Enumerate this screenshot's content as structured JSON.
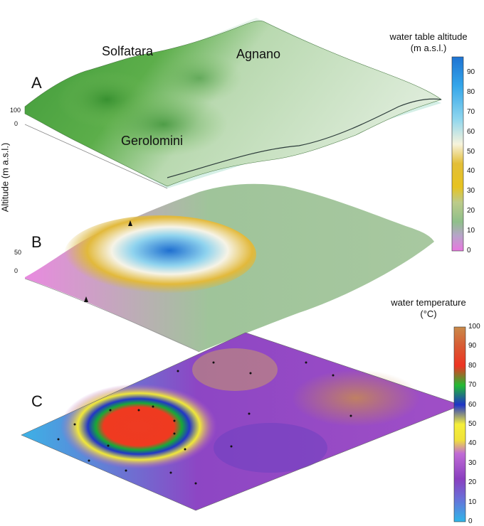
{
  "panels": {
    "a": {
      "letter": "A",
      "places": [
        "Solfatara",
        "Agnano",
        "Gerolomini"
      ],
      "z_ticks": [
        "100",
        "0"
      ]
    },
    "b": {
      "letter": "B",
      "z_ticks": [
        "50",
        "0"
      ]
    },
    "c": {
      "letter": "C"
    }
  },
  "y_axis_label": "Altitude (m a.s.l.)",
  "colorbar_altitude": {
    "title_line1": "water table altitude",
    "title_line2": "(m a.s.l.)",
    "ticks": [
      "90",
      "80",
      "70",
      "60",
      "50",
      "40",
      "30",
      "20",
      "10",
      "0"
    ],
    "colors": [
      "#1e73d2",
      "#34a6ea",
      "#8fd6ee",
      "#f7f3dc",
      "#e3be38",
      "#e7c320",
      "#a9c18b",
      "#8fbf8a",
      "#e877e0"
    ]
  },
  "colorbar_temperature": {
    "title_line1": "water temperature",
    "title_line2": "(°C)",
    "ticks": [
      "100",
      "90",
      "80",
      "70",
      "60",
      "50",
      "40",
      "30",
      "20",
      "10",
      "0"
    ],
    "colors": [
      "#c98a4a",
      "#ee3322",
      "#22bb33",
      "#1f34c8",
      "#f5ef3a",
      "#c06bd6",
      "#8a3fbf",
      "#2fb6e8"
    ]
  }
}
